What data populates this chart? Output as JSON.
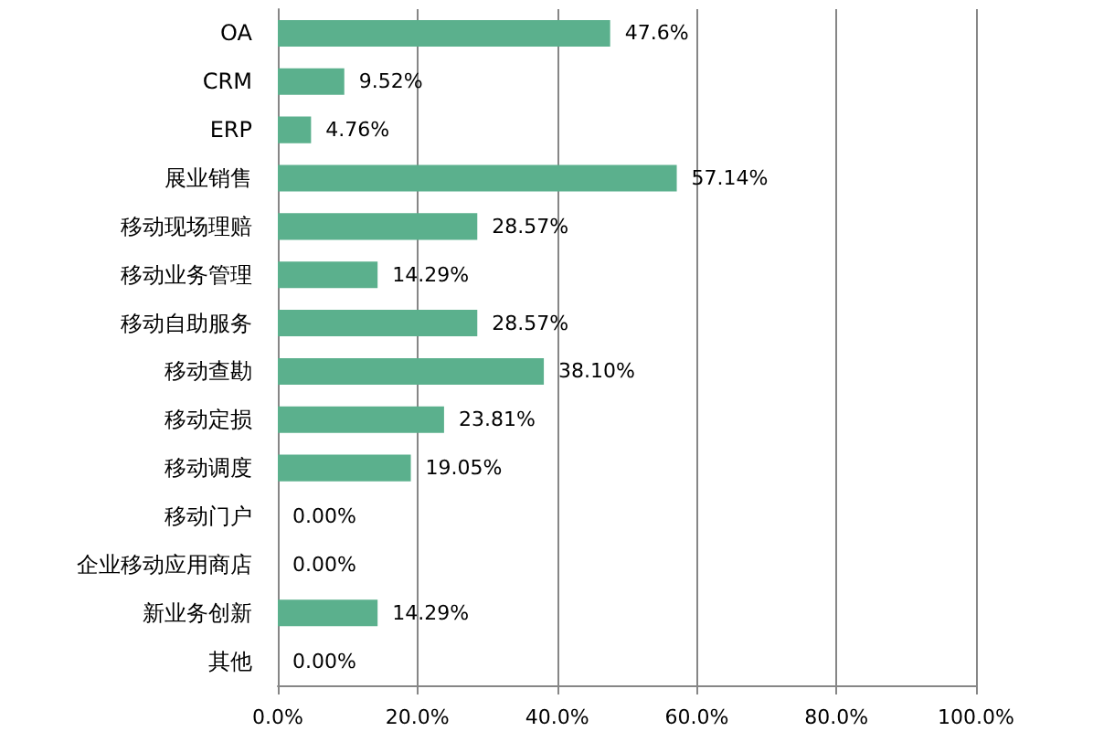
{
  "chart_data": {
    "type": "bar",
    "orientation": "horizontal",
    "categories": [
      "OA",
      "CRM",
      "ERP",
      "展业销售",
      "移动现场理赔",
      "移动业务管理",
      "移动自助服务",
      "移动查勘",
      "移动定损",
      "移动调度",
      "移动门户",
      "企业移动应用商店",
      "新业务创新",
      "其他"
    ],
    "values": [
      47.6,
      9.52,
      4.76,
      57.14,
      28.57,
      14.29,
      28.57,
      38.1,
      23.81,
      19.05,
      0,
      0,
      14.29,
      0
    ],
    "value_labels": [
      "47.6%",
      "9.52%",
      "4.76%",
      "57.14%",
      "28.57%",
      "14.29%",
      "28.57%",
      "38.10%",
      "23.81%",
      "19.05%",
      "0.00%",
      "0.00%",
      "14.29%",
      "0.00%"
    ],
    "color": "#5bb08d",
    "xlim": [
      0,
      100
    ],
    "xticks": [
      {
        "value": 0,
        "label": "0.0%"
      },
      {
        "value": 20,
        "label": "20.0%"
      },
      {
        "value": 40,
        "label": "40.0%"
      },
      {
        "value": 60,
        "label": "60.0%"
      },
      {
        "value": 80,
        "label": "80.0%"
      },
      {
        "value": 100,
        "label": "100.0%"
      }
    ],
    "grid": "x"
  }
}
